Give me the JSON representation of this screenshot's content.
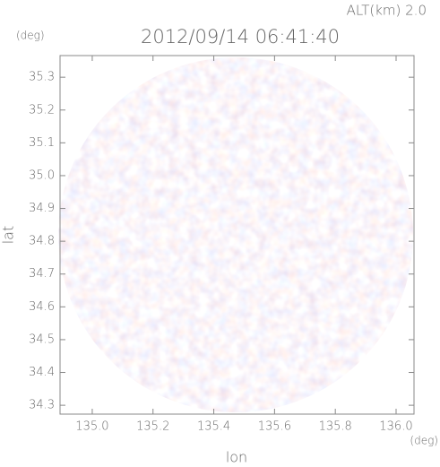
{
  "chart_data": {
    "type": "radar-map",
    "altitude_label": "ALT(km) 2.0",
    "title": "2012/09/14 06:41:40",
    "x_unit": "(deg)",
    "y_unit": "(deg)",
    "x_label": "lon",
    "y_label": "lat",
    "xlim": [
      134.894,
      136.059
    ],
    "ylim": [
      34.273,
      35.366
    ],
    "xticks": [
      {
        "value": 135,
        "label": "135.0"
      },
      135.2,
      135.4,
      135.6,
      135.8,
      {
        "value": 136,
        "label": "136.0"
      }
    ],
    "yticks": [
      34.3,
      34.4,
      34.5,
      34.6,
      34.7,
      34.8,
      34.9,
      {
        "value": 35,
        "label": "35.0"
      },
      35.1,
      35.2,
      35.3
    ]
  }
}
